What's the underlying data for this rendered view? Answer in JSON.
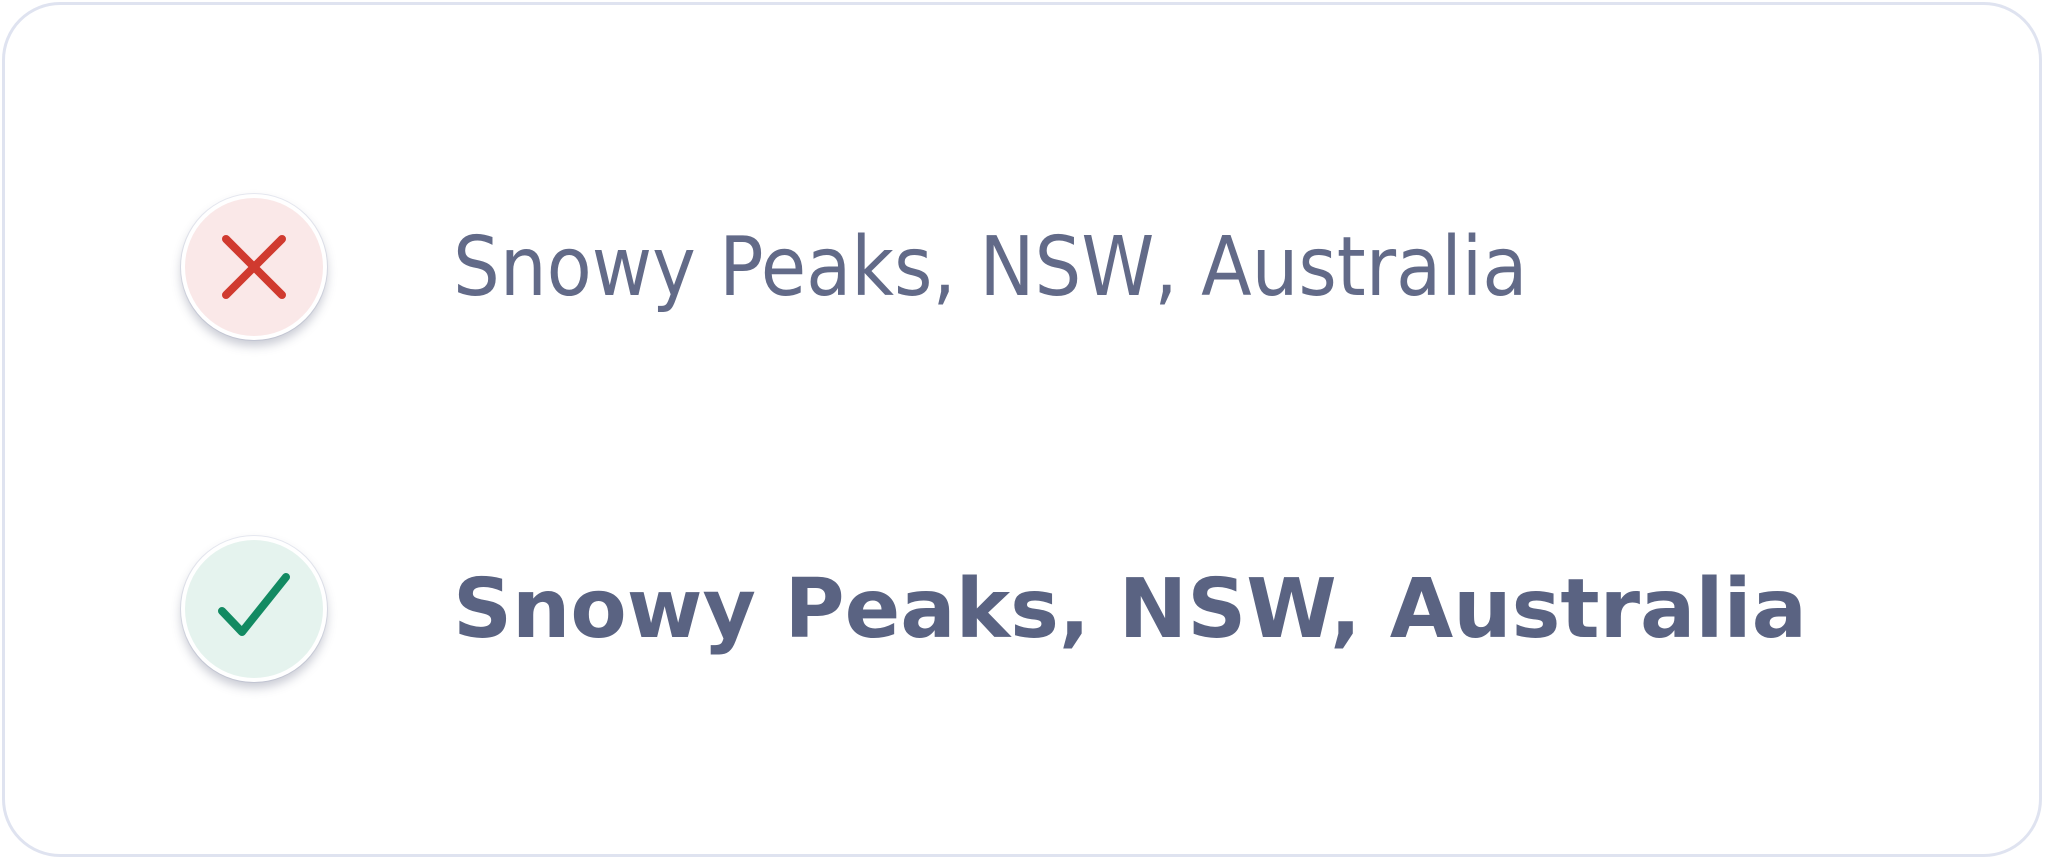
{
  "wrong_example": {
    "icon": "cross-icon",
    "icon_color": "#d03a2f",
    "badge_color": "#fae8e8",
    "text": "Snowy Peaks, NSW, Australia",
    "style": "light"
  },
  "right_example": {
    "icon": "check-icon",
    "icon_color": "#128a62",
    "badge_color": "#e5f3ee",
    "text": "Snowy Peaks, NSW, Australia",
    "style": "bold"
  },
  "text_color": "#5a6382"
}
